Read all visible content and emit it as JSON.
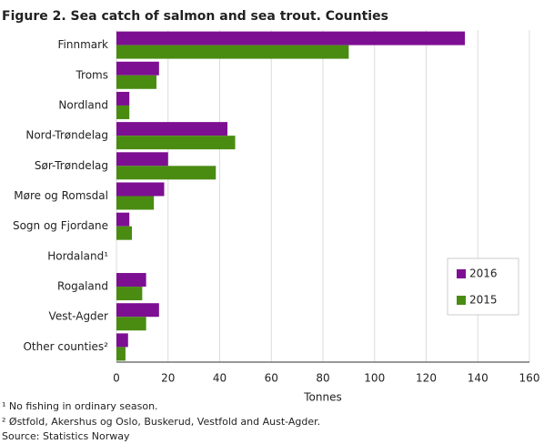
{
  "chart_data": {
    "type": "hbar",
    "title": "Figure 2. Sea catch of salmon and sea trout. Counties",
    "categories": [
      "Finnmark",
      "Troms",
      "Nordland",
      "Nord-Trøndelag",
      "Sør-Trøndelag",
      "Møre og Romsdal",
      "Sogn og Fjordane",
      "Hordaland¹",
      "Rogaland",
      "Vest-Agder",
      "Other counties²"
    ],
    "series": [
      {
        "name": "2016",
        "color": "#7d0f93",
        "values": [
          135,
          16.5,
          5,
          43,
          20,
          18.5,
          5,
          0,
          11.5,
          16.5,
          4.5
        ]
      },
      {
        "name": "2015",
        "color": "#4a8c12",
        "values": [
          90,
          15.5,
          5,
          46,
          38.5,
          14.5,
          6,
          0,
          10,
          11.5,
          3.5
        ]
      }
    ],
    "xlim": [
      0,
      160
    ],
    "xticks": [
      0,
      20,
      40,
      60,
      80,
      100,
      120,
      140,
      160
    ],
    "xlabel": "Tonnes",
    "grid": true,
    "legend_position": "lower right",
    "footnotes": [
      "¹ No fishing in ordinary season.",
      "² Østfold, Akershus og Oslo, Buskerud, Vestfold and Aust-Agder."
    ],
    "source": "Source: Statistics Norway"
  }
}
